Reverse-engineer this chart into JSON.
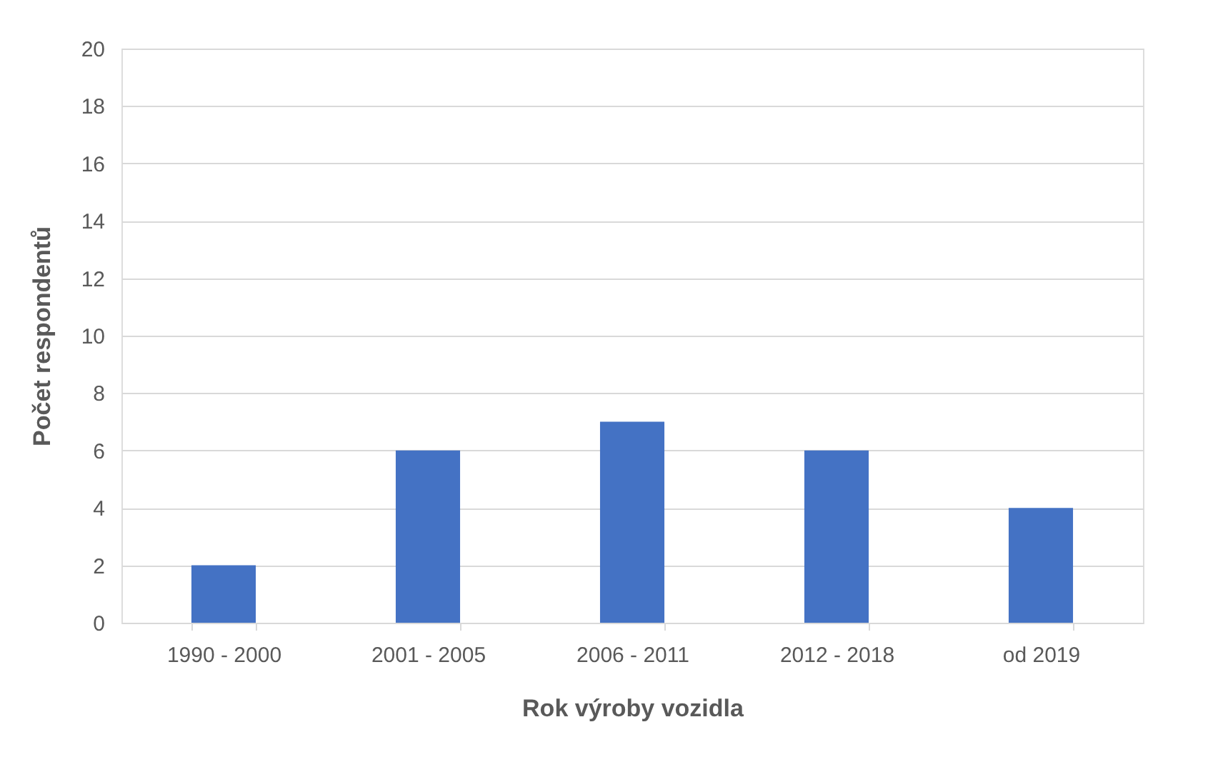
{
  "chart_data": {
    "type": "bar",
    "xlabel": "Rok výroby vozidla",
    "ylabel": "Počet respondentů",
    "categories": [
      "1990 - 2000",
      "2001 - 2005",
      "2006 - 2011",
      "2012 - 2018",
      "od 2019"
    ],
    "values": [
      2,
      6,
      7,
      6,
      4
    ],
    "color": "#4472c4",
    "ylim": [
      0,
      20
    ],
    "yticks": [
      0,
      2,
      4,
      6,
      8,
      10,
      12,
      14,
      16,
      18,
      20
    ],
    "grid": "y"
  }
}
